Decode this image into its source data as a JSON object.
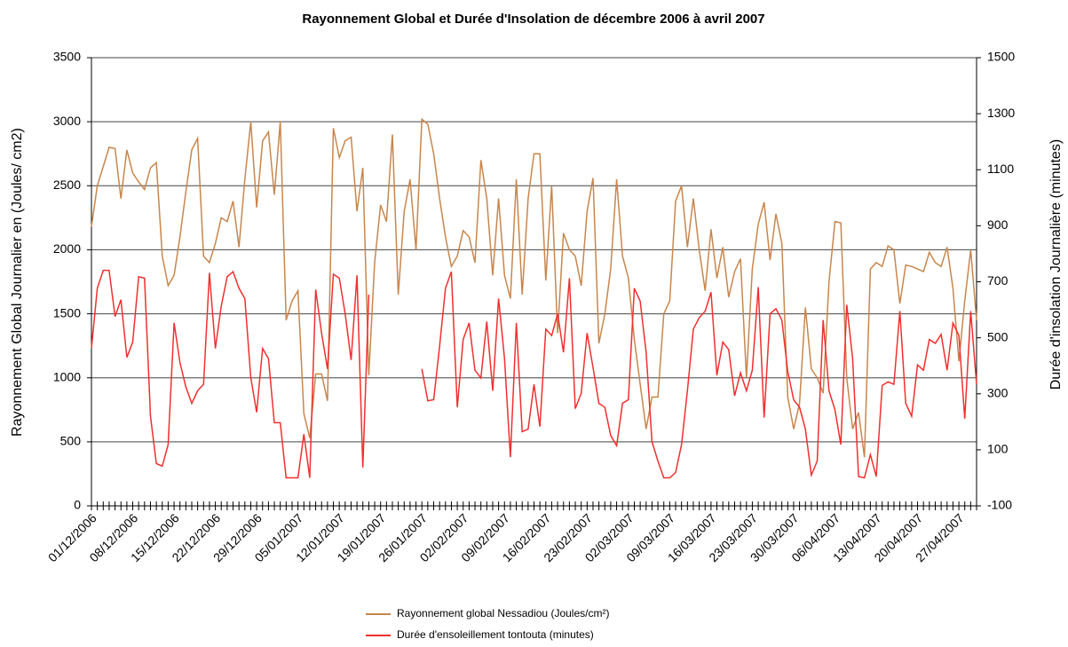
{
  "chart_data": {
    "type": "line",
    "title": "Rayonnement Global et Durée d'Insolation de décembre 2006 à avril 2007",
    "ylabel": "Rayonnement Global Journalier en (Joules/ cm2)",
    "y2label": "Durée d'insolation Journalière (minutes)",
    "categories": [
      "01/12/2006",
      null,
      null,
      null,
      null,
      null,
      null,
      "08/12/2006",
      null,
      null,
      null,
      null,
      null,
      null,
      "15/12/2006",
      null,
      null,
      null,
      null,
      null,
      null,
      "22/12/2006",
      null,
      null,
      null,
      null,
      null,
      null,
      "29/12/2006",
      null,
      null,
      null,
      null,
      null,
      null,
      "05/01/2007",
      null,
      null,
      null,
      null,
      null,
      null,
      "12/01/2007",
      null,
      null,
      null,
      null,
      null,
      null,
      "19/01/2007",
      null,
      null,
      null,
      null,
      null,
      null,
      "26/01/2007",
      null,
      null,
      null,
      null,
      null,
      null,
      "02/02/2007",
      null,
      null,
      null,
      null,
      null,
      null,
      "09/02/2007",
      null,
      null,
      null,
      null,
      null,
      null,
      "16/02/2007",
      null,
      null,
      null,
      null,
      null,
      null,
      "23/02/2007",
      null,
      null,
      null,
      null,
      null,
      null,
      "02/03/2007",
      null,
      null,
      null,
      null,
      null,
      null,
      "09/03/2007",
      null,
      null,
      null,
      null,
      null,
      null,
      "16/03/2007",
      null,
      null,
      null,
      null,
      null,
      null,
      "23/03/2007",
      null,
      null,
      null,
      null,
      null,
      null,
      "30/03/2007",
      null,
      null,
      null,
      null,
      null,
      null,
      "06/04/2007",
      null,
      null,
      null,
      null,
      null,
      null,
      "13/04/2007",
      null,
      null,
      null,
      null,
      null,
      null,
      "20/04/2007",
      null,
      null,
      null,
      null,
      null,
      null,
      "27/04/2007",
      null,
      null,
      null
    ],
    "series": [
      {
        "name": "Rayonnement global Nessadiou (Joules/cm²)",
        "color": "#c8864d",
        "axis": "y",
        "values": [
          2180,
          2500,
          2650,
          2800,
          2790,
          2400,
          2780,
          2600,
          2530,
          2470,
          2640,
          2680,
          1950,
          1720,
          1800,
          2100,
          2450,
          2780,
          2870,
          1950,
          1900,
          2050,
          2250,
          2220,
          2380,
          2020,
          2550,
          3000,
          2330,
          2850,
          2920,
          2430,
          3000,
          1450,
          1600,
          1680,
          720,
          530,
          1030,
          1030,
          820,
          2950,
          2720,
          2850,
          2880,
          2300,
          2640,
          1020,
          1900,
          2350,
          2220,
          2900,
          1650,
          2300,
          2550,
          2000,
          3020,
          2980,
          2750,
          2400,
          2100,
          1870,
          1950,
          2150,
          2100,
          1900,
          2700,
          2400,
          1800,
          2400,
          1800,
          1620,
          2550,
          1650,
          2400,
          2750,
          2750,
          1760,
          2500,
          1350,
          2130,
          2000,
          1950,
          1720,
          2300,
          2560,
          1270,
          1500,
          1850,
          2550,
          1950,
          1780,
          1300,
          950,
          600,
          850,
          850,
          1500,
          1600,
          2380,
          2500,
          2020,
          2400,
          2000,
          1680,
          2160,
          1780,
          2020,
          1630,
          1830,
          1930,
          1000,
          1850,
          2200,
          2370,
          1920,
          2280,
          2050,
          850,
          600,
          800,
          1550,
          1070,
          1000,
          880,
          1750,
          2220,
          2210,
          1000,
          600,
          730,
          380,
          1850,
          1900,
          1870,
          2030,
          2000,
          1580,
          1880,
          1870,
          1850,
          1830,
          1980,
          1900,
          1870,
          2020,
          1700,
          1130,
          1600,
          2000,
          1450
        ]
      },
      {
        "name": "Durée d'ensoleillement tontouta (minutes)",
        "color": "#f22f2f",
        "axis": "y2",
        "values": [
          462,
          677,
          741,
          741,
          576,
          636,
          430,
          485,
          718,
          713,
          220,
          51,
          42,
          119,
          553,
          412,
          325,
          266,
          311,
          334,
          732,
          462,
          613,
          718,
          736,
          677,
          640,
          357,
          234,
          462,
          426,
          197,
          197,
          0,
          0,
          0,
          156,
          0,
          672,
          517,
          389,
          727,
          713,
          586,
          421,
          723,
          37,
          654,
          null,
          null,
          null,
          null,
          null,
          null,
          null,
          null,
          389,
          275,
          279,
          471,
          677,
          736,
          252,
          494,
          553,
          384,
          357,
          558,
          311,
          640,
          426,
          74,
          553,
          165,
          174,
          334,
          183,
          531,
          508,
          586,
          448,
          713,
          247,
          302,
          517,
          394,
          266,
          252,
          151,
          115,
          266,
          279,
          677,
          631,
          448,
          129,
          60,
          0,
          0,
          19,
          119,
          311,
          531,
          572,
          595,
          663,
          366,
          485,
          458,
          293,
          375,
          311,
          384,
          681,
          215,
          586,
          604,
          563,
          380,
          279,
          252,
          174,
          10,
          60,
          563,
          311,
          243,
          119,
          618,
          426,
          5,
          0,
          83,
          5,
          330,
          343,
          334,
          595,
          266,
          220,
          403,
          384,
          494,
          480,
          512,
          384,
          553,
          508,
          211,
          595,
          334
        ]
      }
    ],
    "ylim": [
      0,
      3500
    ],
    "yticks": [
      0,
      500,
      1000,
      1500,
      2000,
      2500,
      3000,
      3500
    ],
    "y2lim": [
      -100,
      1500
    ],
    "y2ticks": [
      -100,
      100,
      300,
      500,
      700,
      900,
      1100,
      1300,
      1500
    ],
    "grid": true,
    "legend": "bottom"
  }
}
